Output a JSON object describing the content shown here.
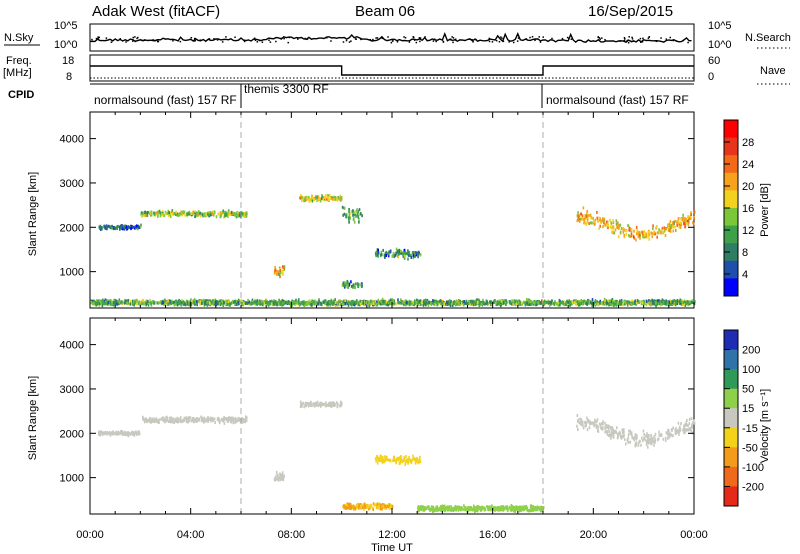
{
  "header": {
    "station": "Adak West (fitACF)",
    "beam": "Beam 06",
    "date": "16/Sep/2015"
  },
  "top_panel": {
    "left_label": "N.Sky",
    "left_ticks": [
      "10^5",
      "10^0"
    ],
    "right_label": "N.Search",
    "right_ticks": [
      "10^5",
      "10^0"
    ]
  },
  "freq_panel": {
    "label_line1": "Freq.",
    "label_line2": "[MHz]",
    "left_ticks": [
      "18",
      "8"
    ],
    "right_label": "Nave",
    "right_ticks": [
      "60",
      "0"
    ]
  },
  "cpid": {
    "label": "CPID",
    "segments": [
      {
        "text": "normalsound (fast) 157 RF",
        "start_h": 0,
        "end_h": 6
      },
      {
        "text": "themis 3300 RF",
        "start_h": 6,
        "end_h": 18
      },
      {
        "text": "normalsound (fast) 157 RF",
        "start_h": 18,
        "end_h": 24
      }
    ]
  },
  "x_axis": {
    "label": "Time UT",
    "ticks": [
      "00:00",
      "04:00",
      "08:00",
      "12:00",
      "16:00",
      "20:00",
      "00:00"
    ]
  },
  "power_colorbar": {
    "label": "Power [dB]",
    "ticks": [
      "28",
      "24",
      "20",
      "16",
      "12",
      "8",
      "4"
    ],
    "colors": [
      "#0000ff",
      "#1f4faa",
      "#2e7d64",
      "#3fa04a",
      "#7cc63a",
      "#f2d21f",
      "#f7a21b",
      "#f26a17",
      "#e8341a",
      "#ff0000"
    ]
  },
  "velocity_colorbar": {
    "label": "Velocity [m s⁻¹]",
    "ticks": [
      "200",
      "100",
      "50",
      "15",
      "-15",
      "-50",
      "-100",
      "-200"
    ],
    "colors": [
      "#1e2db4",
      "#2f73a8",
      "#2f9a58",
      "#8fd04a",
      "#c8c8c0",
      "#f4d21a",
      "#f39b1a",
      "#ef6a1a",
      "#e62a1a"
    ]
  },
  "chart_data": [
    {
      "type": "heatmap",
      "title": "",
      "quantity": "Power [dB]",
      "xlabel": "Time UT",
      "ylabel": "Slant Range [km]",
      "xlim_hours": [
        0,
        24
      ],
      "ylim_km": [
        180,
        4600
      ],
      "yticks": [
        1000,
        2000,
        3000,
        4000
      ],
      "scatter_regions": [
        {
          "t_start": 0.3,
          "t_end": 2.0,
          "range_center": 2000,
          "range_spread": 60,
          "value_mean": 6
        },
        {
          "t_start": 2.0,
          "t_end": 6.2,
          "range_center": 2300,
          "range_spread": 90,
          "value_mean": 14
        },
        {
          "t_start": 7.3,
          "t_end": 7.7,
          "range_center": 1000,
          "range_spread": 180,
          "value_mean": 20
        },
        {
          "t_start": 8.3,
          "t_end": 10.0,
          "range_center": 2650,
          "range_spread": 80,
          "value_mean": 16
        },
        {
          "t_start": 10.0,
          "t_end": 10.8,
          "range_center": 2300,
          "range_spread": 220,
          "value_mean": 12
        },
        {
          "t_start": 11.3,
          "t_end": 13.1,
          "range_center": 1400,
          "range_spread": 130,
          "value_mean": 9
        },
        {
          "t_start": 10.0,
          "t_end": 10.8,
          "range_center": 700,
          "range_spread": 120,
          "value_mean": 10
        },
        {
          "t_start": 19.3,
          "t_end": 24.0,
          "range_center": 2050,
          "range_spread": 220,
          "value_mean": 20
        },
        {
          "t_start": 0.0,
          "t_end": 24.0,
          "range_center": 300,
          "range_spread": 80,
          "value_mean": 12
        }
      ]
    },
    {
      "type": "heatmap",
      "title": "",
      "quantity": "Velocity [m s⁻¹]",
      "xlabel": "Time UT",
      "ylabel": "Slant Range [km]",
      "xlim_hours": [
        0,
        24
      ],
      "ylim_km": [
        180,
        4600
      ],
      "yticks": [
        1000,
        2000,
        3000,
        4000
      ],
      "scatter_regions": [
        {
          "t_start": 0.3,
          "t_end": 2.0,
          "range_center": 2000,
          "range_spread": 60,
          "value_mean": 0
        },
        {
          "t_start": 2.0,
          "t_end": 6.2,
          "range_center": 2300,
          "range_spread": 90,
          "value_mean": 0
        },
        {
          "t_start": 7.3,
          "t_end": 7.7,
          "range_center": 1000,
          "range_spread": 180,
          "value_mean": 0
        },
        {
          "t_start": 8.3,
          "t_end": 10.0,
          "range_center": 2650,
          "range_spread": 80,
          "value_mean": 0
        },
        {
          "t_start": 11.3,
          "t_end": 13.1,
          "range_center": 1400,
          "range_spread": 130,
          "value_mean": -40
        },
        {
          "t_start": 10.0,
          "t_end": 12.0,
          "range_center": 350,
          "range_spread": 80,
          "value_mean": -50
        },
        {
          "t_start": 13.0,
          "t_end": 18.0,
          "range_center": 300,
          "range_spread": 80,
          "value_mean": 40
        },
        {
          "t_start": 19.3,
          "t_end": 24.0,
          "range_center": 2050,
          "range_spread": 220,
          "value_mean": 0
        }
      ]
    }
  ]
}
